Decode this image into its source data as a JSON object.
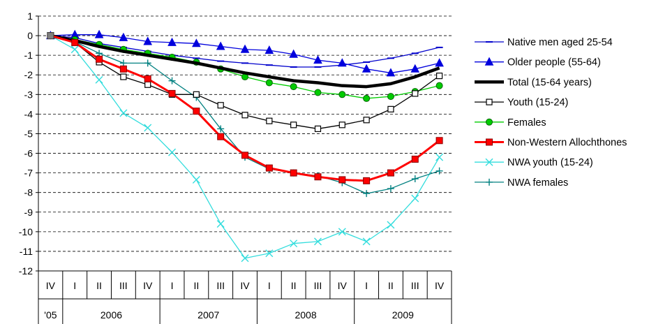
{
  "chart_data": {
    "type": "line",
    "title": "",
    "xlabel": "",
    "ylabel": "",
    "ylim": [
      -12,
      1
    ],
    "yticks": [
      1,
      0,
      -1,
      -2,
      -3,
      -4,
      -5,
      -6,
      -7,
      -8,
      -9,
      -10,
      -11,
      -12
    ],
    "grid": "horizontal dashed",
    "legend_position": "right",
    "quarters": [
      "IV",
      "I",
      "II",
      "III",
      "IV",
      "I",
      "II",
      "III",
      "IV",
      "I",
      "II",
      "III",
      "IV",
      "I",
      "II",
      "III",
      "IV"
    ],
    "years": [
      {
        "label": "'05",
        "start": 0,
        "end": 0
      },
      {
        "label": "2006",
        "start": 1,
        "end": 4
      },
      {
        "label": "2007",
        "start": 5,
        "end": 8
      },
      {
        "label": "2008",
        "start": 9,
        "end": 12
      },
      {
        "label": "2009",
        "start": 13,
        "end": 16
      }
    ],
    "series": [
      {
        "name": "Native men aged 25-54",
        "color": "#0000cc",
        "width": 1.3,
        "marker": "dash",
        "values": [
          0,
          -0.1,
          -0.4,
          -0.6,
          -0.8,
          -1.0,
          -1.15,
          -1.3,
          -1.4,
          -1.5,
          -1.6,
          -1.6,
          -1.5,
          -1.35,
          -1.15,
          -0.9,
          -0.6
        ]
      },
      {
        "name": "Older people (55-64)",
        "color": "#0000dd",
        "width": 1.3,
        "marker": "triangle",
        "values": [
          0,
          0.05,
          0.05,
          -0.1,
          -0.3,
          -0.35,
          -0.4,
          -0.55,
          -0.7,
          -0.75,
          -0.95,
          -1.25,
          -1.4,
          -1.7,
          -1.9,
          -1.7,
          -1.4
        ]
      },
      {
        "name": "Total (15-64 years)",
        "color": "#000000",
        "width": 4.5,
        "marker": "none",
        "values": [
          0,
          -0.25,
          -0.55,
          -0.8,
          -1.0,
          -1.2,
          -1.4,
          -1.65,
          -1.9,
          -2.1,
          -2.3,
          -2.4,
          -2.55,
          -2.6,
          -2.45,
          -2.1,
          -1.65
        ]
      },
      {
        "name": "Youth (15-24)",
        "color": "#000000",
        "width": 1.3,
        "marker": "square-open",
        "values": [
          0,
          -0.35,
          -1.35,
          -2.1,
          -2.5,
          -3.0,
          -3.0,
          -3.55,
          -4.05,
          -4.35,
          -4.55,
          -4.75,
          -4.55,
          -4.3,
          -3.75,
          -2.95,
          -2.05
        ]
      },
      {
        "name": "Females",
        "color": "#00cc00",
        "width": 1.3,
        "marker": "circle",
        "values": [
          0,
          -0.2,
          -0.45,
          -0.7,
          -0.9,
          -1.1,
          -1.35,
          -1.7,
          -2.1,
          -2.4,
          -2.6,
          -2.9,
          -3.0,
          -3.2,
          -3.1,
          -2.85,
          -2.55
        ]
      },
      {
        "name": "Non-Western Allochthones",
        "color": "#ff0000",
        "width": 3.0,
        "marker": "square-filled",
        "values": [
          0,
          -0.35,
          -1.2,
          -1.7,
          -2.2,
          -2.95,
          -3.85,
          -5.15,
          -6.1,
          -6.75,
          -7.0,
          -7.2,
          -7.35,
          -7.4,
          -7.0,
          -6.3,
          -5.35
        ]
      },
      {
        "name": "NWA youth (15-24)",
        "color": "#33dddd",
        "width": 1.3,
        "marker": "x",
        "values": [
          0,
          -0.7,
          -2.25,
          -3.95,
          -4.7,
          -5.95,
          -7.35,
          -9.6,
          -11.35,
          -11.1,
          -10.6,
          -10.5,
          -10.0,
          -10.5,
          -9.65,
          -8.3,
          -6.2
        ]
      },
      {
        "name": "NWA females",
        "color": "#008080",
        "width": 1.3,
        "marker": "plus",
        "values": [
          0,
          -0.3,
          -0.9,
          -1.4,
          -1.4,
          -2.3,
          -3.15,
          -4.75,
          -6.2,
          -6.8,
          -7.0,
          -7.15,
          -7.5,
          -8.05,
          -7.8,
          -7.3,
          -6.9
        ]
      }
    ]
  }
}
